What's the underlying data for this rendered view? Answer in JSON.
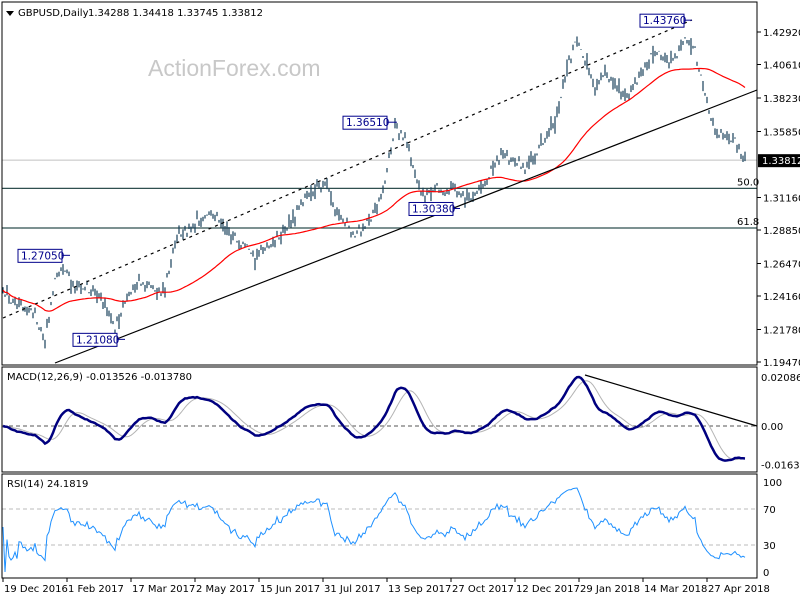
{
  "header": {
    "symbol": "GBPUSD,Daily",
    "ohlc": "1.34288 1.34418 1.33745 1.33812"
  },
  "watermark": "ActionForex.com",
  "colors": {
    "bars": "#17405a",
    "ma": "#ff0000",
    "macd": "#00007f",
    "signal": "#b4b4b4",
    "rsi": "#1e90ff",
    "fib": "#2f4f4f",
    "price_line": "#c0c0c0"
  },
  "chart_data": [
    {
      "type": "bar",
      "title": "GBPUSD,Daily",
      "sampling": "weekly closes (every 5 trading days)",
      "closes": [
        1.2458,
        1.2351,
        1.233,
        1.228,
        1.2102,
        1.2529,
        1.26,
        1.247,
        1.247,
        1.2458,
        1.2351,
        1.219,
        1.2387,
        1.251,
        1.251,
        1.2458,
        1.2458,
        1.2813,
        1.287,
        1.294,
        1.298,
        1.299,
        1.29,
        1.2827,
        1.2778,
        1.2686,
        1.274,
        1.2813,
        1.2884,
        1.2991,
        1.3098,
        1.3155,
        1.3226,
        1.3026,
        1.294,
        1.2849,
        1.292,
        1.3026,
        1.324,
        1.361,
        1.3524,
        1.3276,
        1.3112,
        1.318,
        1.3155,
        1.3204,
        1.3112,
        1.3155,
        1.3204,
        1.3368,
        1.344,
        1.3368,
        1.3346,
        1.3396,
        1.3524,
        1.3666,
        1.395,
        1.4235,
        1.4093,
        1.3915,
        1.3986,
        1.3915,
        1.3844,
        1.3915,
        1.4022,
        1.4164,
        1.4107,
        1.4093,
        1.4235,
        1.4164,
        1.3844,
        1.3595,
        1.3538,
        1.3524,
        1.33812
      ],
      "last_bar": {
        "open": 1.34288,
        "high": 1.34418,
        "low": 1.33745,
        "close": 1.33812
      },
      "ylim": [
        1.1947,
        1.4292
      ],
      "yticks": [
        "1.42920",
        "1.40610",
        "1.38230",
        "1.35850",
        "1.31160",
        "1.28850",
        "1.26470",
        "1.24160",
        "1.21780",
        "1.19470"
      ],
      "current_price_label": "1.33812",
      "xticks": [
        "19 Dec 2016",
        "1 Feb 2017",
        "17 Mar 2017",
        "2 May 2017",
        "15 Jun 2017",
        "31 Jul 2017",
        "13 Sep 2017",
        "27 Oct 2017",
        "12 Dec 2017",
        "29 Jan 2018",
        "14 Mar 2018",
        "27 Apr 2018"
      ],
      "annotations": [
        {
          "text": "1.27050",
          "value": 1.2705
        },
        {
          "text": "1.21080",
          "value": 1.2108
        },
        {
          "text": "1.36510",
          "value": 1.3651
        },
        {
          "text": "1.30380",
          "value": 1.3038
        },
        {
          "text": "1.43760",
          "value": 1.4376
        }
      ],
      "fib_levels": [
        {
          "label": "50.0",
          "value": 1.3181
        },
        {
          "label": "61.8",
          "value": 1.2899
        }
      ],
      "moving_average": "red line (55-day)",
      "trendlines": [
        "rising channel support (solid)",
        "rising channel resistance (dashed)"
      ]
    },
    {
      "type": "line",
      "title": "MACD(12,26,9) -0.013526 -0.013780",
      "yticks": [
        "0.020861",
        "0.00",
        "-0.016357"
      ],
      "ylim": [
        -0.016357,
        0.020861
      ],
      "series": [
        {
          "name": "MACD",
          "last": -0.013526
        },
        {
          "name": "Signal",
          "last": -0.01378
        }
      ],
      "trendline": "falling resistance from Jan 2018 high"
    },
    {
      "type": "line",
      "title": "RSI(14) 24.1819",
      "yticks": [
        "100",
        "70",
        "30",
        "0"
      ],
      "ylim": [
        0,
        100
      ],
      "levels": [
        70,
        30
      ],
      "last": 24.1819
    }
  ]
}
